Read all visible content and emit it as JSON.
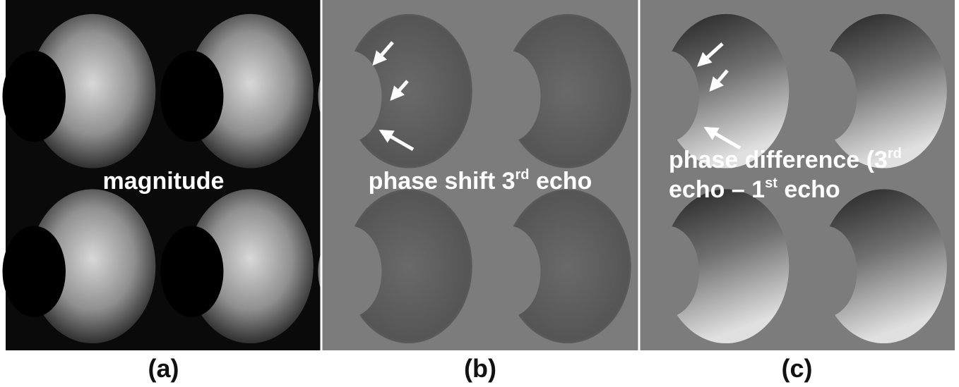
{
  "panels": [
    {
      "caption": "(a)",
      "lines": [
        [
          "magnitude"
        ]
      ]
    },
    {
      "caption": "(b)",
      "lines": [
        [
          "phase shift 3",
          "rd",
          " echo"
        ]
      ]
    },
    {
      "caption": "(c)",
      "lines": [
        [
          "phase difference (3",
          "rd"
        ],
        [
          "echo – 1",
          "st",
          " echo"
        ]
      ]
    }
  ]
}
